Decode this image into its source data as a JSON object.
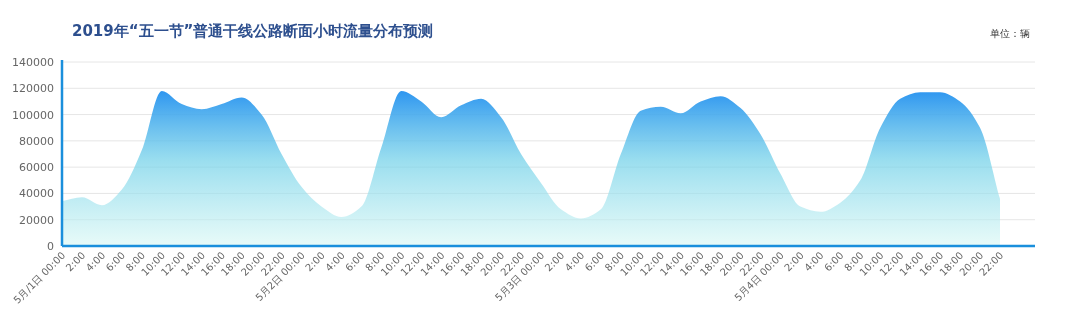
{
  "chart_data": {
    "type": "area",
    "title": "2019年“五一节”普通干线公路断面小时流量分布预测",
    "annotations": [
      "单位：辆"
    ],
    "categories": [
      "5月/1日 00:00",
      "2:00",
      "4:00",
      "6:00",
      "8:00",
      "10:00",
      "12:00",
      "14:00",
      "16:00",
      "18:00",
      "20:00",
      "22:00",
      "5月2日 00:00",
      "2:00",
      "4:00",
      "6:00",
      "8:00",
      "10:00",
      "12:00",
      "14:00",
      "16:00",
      "18:00",
      "20:00",
      "22:00",
      "5月3日 00:00",
      "2:00",
      "4:00",
      "6:00",
      "8:00",
      "10:00",
      "12:00",
      "14:00",
      "16:00",
      "18:00",
      "20:00",
      "22:00",
      "5月4日 00:00",
      "2:00",
      "4:00",
      "6:00",
      "8:00",
      "10:00",
      "12:00",
      "14:00",
      "16:00",
      "18:00",
      "20:00",
      "22:00"
    ],
    "values": [
      34000,
      37000,
      31000,
      43000,
      73000,
      118000,
      108000,
      104000,
      108000,
      113000,
      100000,
      70000,
      45000,
      30000,
      22000,
      30000,
      75000,
      118000,
      110000,
      98000,
      107000,
      112000,
      98000,
      70000,
      48000,
      28000,
      21000,
      28000,
      70000,
      103000,
      106000,
      101000,
      110000,
      114000,
      105000,
      85000,
      55000,
      30000,
      26000,
      33000,
      50000,
      90000,
      112000,
      117000,
      117000,
      110000,
      90000,
      36000
    ],
    "color": "#2e96f0",
    "ylim": [
      0,
      140000
    ],
    "yticks": [
      0,
      20000,
      40000,
      60000,
      80000,
      100000,
      120000,
      140000
    ],
    "grid": "y"
  }
}
